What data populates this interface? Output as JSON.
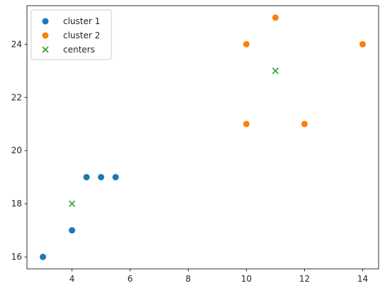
{
  "chart_data": {
    "type": "scatter",
    "title": "",
    "xlabel": "",
    "ylabel": "",
    "xlim": [
      2.45,
      14.55
    ],
    "ylim": [
      15.55,
      25.45
    ],
    "xticks": [
      4,
      6,
      8,
      10,
      12,
      14
    ],
    "yticks": [
      16,
      18,
      20,
      22,
      24
    ],
    "xtick_labels": [
      "4",
      "6",
      "8",
      "10",
      "12",
      "14"
    ],
    "ytick_labels": [
      "16",
      "18",
      "20",
      "22",
      "24"
    ],
    "grid": false,
    "legend_position": "top-left",
    "series": [
      {
        "name": "cluster 1",
        "marker": "circle",
        "color": "#1f77b4",
        "points": [
          [
            3,
            16
          ],
          [
            4,
            17
          ],
          [
            4.5,
            19
          ],
          [
            5,
            19
          ],
          [
            5.5,
            19
          ]
        ]
      },
      {
        "name": "cluster 2",
        "marker": "circle",
        "color": "#ff7f0e",
        "points": [
          [
            10,
            21
          ],
          [
            10,
            24
          ],
          [
            11,
            25
          ],
          [
            12,
            21
          ],
          [
            14,
            24
          ]
        ]
      },
      {
        "name": "centers",
        "marker": "x",
        "color": "#2ca02c",
        "points": [
          [
            4,
            18
          ],
          [
            11,
            23
          ]
        ]
      }
    ]
  }
}
